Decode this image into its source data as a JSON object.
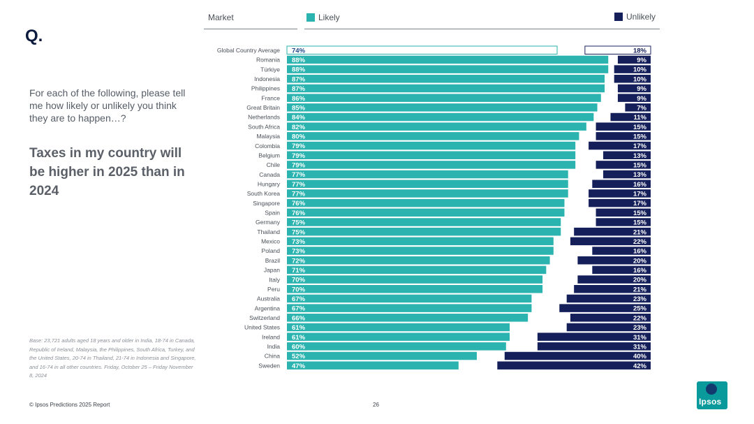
{
  "q_mark": "Q.",
  "question": "For each of the following, please tell me how likely or unlikely you think they are to happen…?",
  "headline": "Taxes in my country will be higher in 2025 than in 2024",
  "base_note": "Base: 23,721 adults aged 18 years and older in India, 18-74 in Canada, Republic of Ireland, Malaysia, the Philippines, South Africa, Turkey, and the United States, 20-74 in Thailand, 21-74 in Indonesia and Singapore, and 16-74 in all other countries. Friday, October 25 – Friday November 8, 2024",
  "footer": {
    "source": "© Ipsos Predictions 2025 Report",
    "page": "26"
  },
  "logo": {
    "text": "Ipsos"
  },
  "colors": {
    "likely": "#2ab3af",
    "unlikely": "#15205b",
    "text": "#4a4f57"
  },
  "chart_data": {
    "type": "bar",
    "orientation": "horizontal-diverging",
    "column_header": "Market",
    "categories": [
      "Global Country Average",
      "Romania",
      "Türkiye",
      "Indonesia",
      "Philippines",
      "France",
      "Great Britain",
      "Netherlands",
      "South Africa",
      "Malaysia",
      "Colombia",
      "Belgium",
      "Chile",
      "Canada",
      "Hungary",
      "South Korea",
      "Singapore",
      "Spain",
      "Germany",
      "Thailand",
      "Mexico",
      "Poland",
      "Brazil",
      "Japan",
      "Italy",
      "Peru",
      "Australia",
      "Argentina",
      "Switzerland",
      "United States",
      "Ireland",
      "India",
      "China",
      "Sweden"
    ],
    "series": [
      {
        "name": "Likely",
        "values": [
          74,
          88,
          88,
          87,
          87,
          86,
          85,
          84,
          82,
          80,
          79,
          79,
          79,
          77,
          77,
          77,
          76,
          76,
          75,
          75,
          73,
          73,
          72,
          71,
          70,
          70,
          67,
          67,
          66,
          61,
          61,
          60,
          52,
          47
        ]
      },
      {
        "name": "Unlikely",
        "values": [
          18,
          9,
          10,
          10,
          9,
          9,
          7,
          11,
          15,
          15,
          17,
          13,
          15,
          13,
          16,
          17,
          17,
          15,
          15,
          21,
          22,
          16,
          20,
          16,
          20,
          21,
          23,
          25,
          22,
          23,
          31,
          31,
          40,
          42
        ]
      }
    ],
    "labels": {
      "likely": [
        "74%",
        "88%",
        "88%",
        "87%",
        "87%",
        "86%",
        "85%",
        "84%",
        "82%",
        "80%",
        "79%",
        "79%",
        "79%",
        "77%",
        "77%",
        "77%",
        "76%",
        "76%",
        "75%",
        "75%",
        "73%",
        "73%",
        "72%",
        "71%",
        "70%",
        "70%",
        "67%",
        "67%",
        "66%",
        "61%",
        "61%",
        "60%",
        "52%",
        "47%"
      ],
      "unlikely": [
        "18%",
        "9%",
        "10%",
        "10%",
        "9%",
        "9%",
        "7%",
        "11%",
        "15%",
        "15%",
        "17%",
        "13%",
        "15%",
        "13%",
        "16%",
        "17%",
        "17%",
        "15%",
        "15%",
        "21%",
        "22%",
        "16%",
        "20%",
        "16%",
        "20%",
        "21%",
        "23%",
        "25%",
        "22%",
        "23%",
        "31%",
        "31%",
        "40%",
        "42%"
      ]
    },
    "xlim": [
      0,
      100
    ]
  }
}
